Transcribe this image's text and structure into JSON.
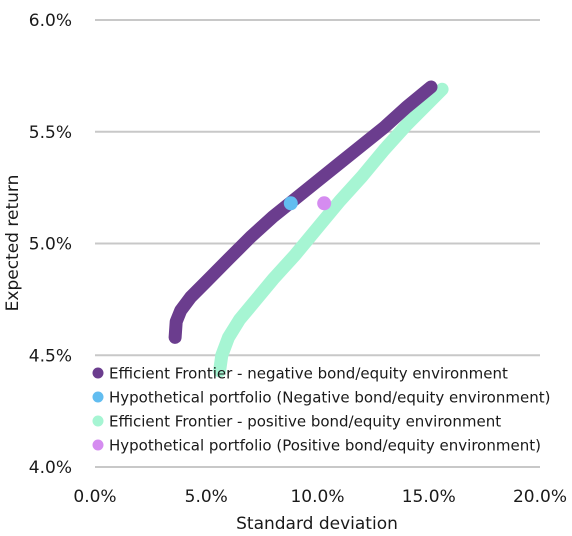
{
  "chart_data": {
    "type": "scatter",
    "title": "",
    "xlabel": "Standard deviation",
    "ylabel": "Expected return",
    "xlim": [
      0,
      20
    ],
    "ylim": [
      4.0,
      6.0
    ],
    "x_ticks": [
      0,
      5,
      10,
      15,
      20
    ],
    "y_ticks": [
      4.0,
      4.5,
      5.0,
      5.5,
      6.0
    ],
    "x_tick_labels": [
      "0.0%",
      "5.0%",
      "10.0%",
      "15.0%",
      "20.0%"
    ],
    "y_tick_labels": [
      "4.0%",
      "4.5%",
      "5.0%",
      "5.5%",
      "6.0%"
    ],
    "grid": "horizontal",
    "legend_position": "bottom-left",
    "series": [
      {
        "name": "Efficient Frontier - negative bond/equity environment",
        "kind": "line",
        "color": "#6b3d8e",
        "points": [
          [
            3.6,
            4.58
          ],
          [
            3.65,
            4.65
          ],
          [
            3.85,
            4.7
          ],
          [
            4.3,
            4.76
          ],
          [
            5.0,
            4.83
          ],
          [
            6.0,
            4.93
          ],
          [
            7.0,
            5.03
          ],
          [
            8.0,
            5.12
          ],
          [
            9.0,
            5.2
          ],
          [
            10.0,
            5.28
          ],
          [
            11.0,
            5.36
          ],
          [
            12.0,
            5.44
          ],
          [
            13.0,
            5.52
          ],
          [
            14.0,
            5.61
          ],
          [
            15.1,
            5.7
          ]
        ]
      },
      {
        "name": "Hypothetical portfolio (Negative bond/equity environment)",
        "kind": "point",
        "color": "#62bdf0",
        "points": [
          [
            8.8,
            5.18
          ]
        ]
      },
      {
        "name": "Efficient Frontier - positive bond/equity environment",
        "kind": "line",
        "color": "#a6f5d3",
        "points": [
          [
            5.6,
            4.43
          ],
          [
            5.7,
            4.5
          ],
          [
            6.0,
            4.58
          ],
          [
            6.5,
            4.66
          ],
          [
            7.0,
            4.72
          ],
          [
            8.0,
            4.84
          ],
          [
            9.0,
            4.95
          ],
          [
            10.0,
            5.07
          ],
          [
            11.0,
            5.19
          ],
          [
            12.0,
            5.3
          ],
          [
            13.0,
            5.42
          ],
          [
            14.0,
            5.53
          ],
          [
            15.0,
            5.63
          ],
          [
            15.6,
            5.69
          ]
        ]
      },
      {
        "name": "Hypothetical portfolio (Positive bond/equity environment)",
        "kind": "point",
        "color": "#d58cf0",
        "points": [
          [
            10.3,
            5.18
          ]
        ]
      }
    ]
  }
}
